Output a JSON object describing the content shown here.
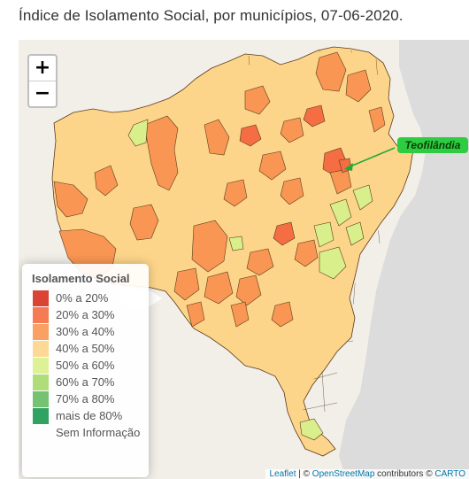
{
  "title": "Índice de Isolamento Social, por municípios, 07-06-2020.",
  "map": {
    "zoom_in": "+",
    "zoom_out": "−",
    "annotation": "Teofilândia",
    "colors": {
      "ocean": "#dcdcdc",
      "land_outside": "#f2efe9",
      "border": "#5a3a1a",
      "annotation_bg": "#2ecc40",
      "annotation_arrow": "#22aa33"
    }
  },
  "legend": {
    "title": "Isolamento Social",
    "items": [
      {
        "label": "0% a 20%",
        "color": "#d7301f"
      },
      {
        "label": "20% a 30%",
        "color": "#f46d43"
      },
      {
        "label": "30% a 40%",
        "color": "#f99653"
      },
      {
        "label": "40% a 50%",
        "color": "#fdd58a"
      },
      {
        "label": "50% a 60%",
        "color": "#d9ef8b"
      },
      {
        "label": "60% a 70%",
        "color": "#a6d96a"
      },
      {
        "label": "70% a 80%",
        "color": "#66bd63"
      },
      {
        "label": "mais de 80%",
        "color": "#1a9850"
      },
      {
        "label": "Sem Informação",
        "color": ""
      }
    ]
  },
  "attribution": {
    "leaflet": "Leaflet",
    "sep": " | © ",
    "osm": "OpenStreetMap",
    "contrib": " contributors © ",
    "carto": "CARTO"
  }
}
